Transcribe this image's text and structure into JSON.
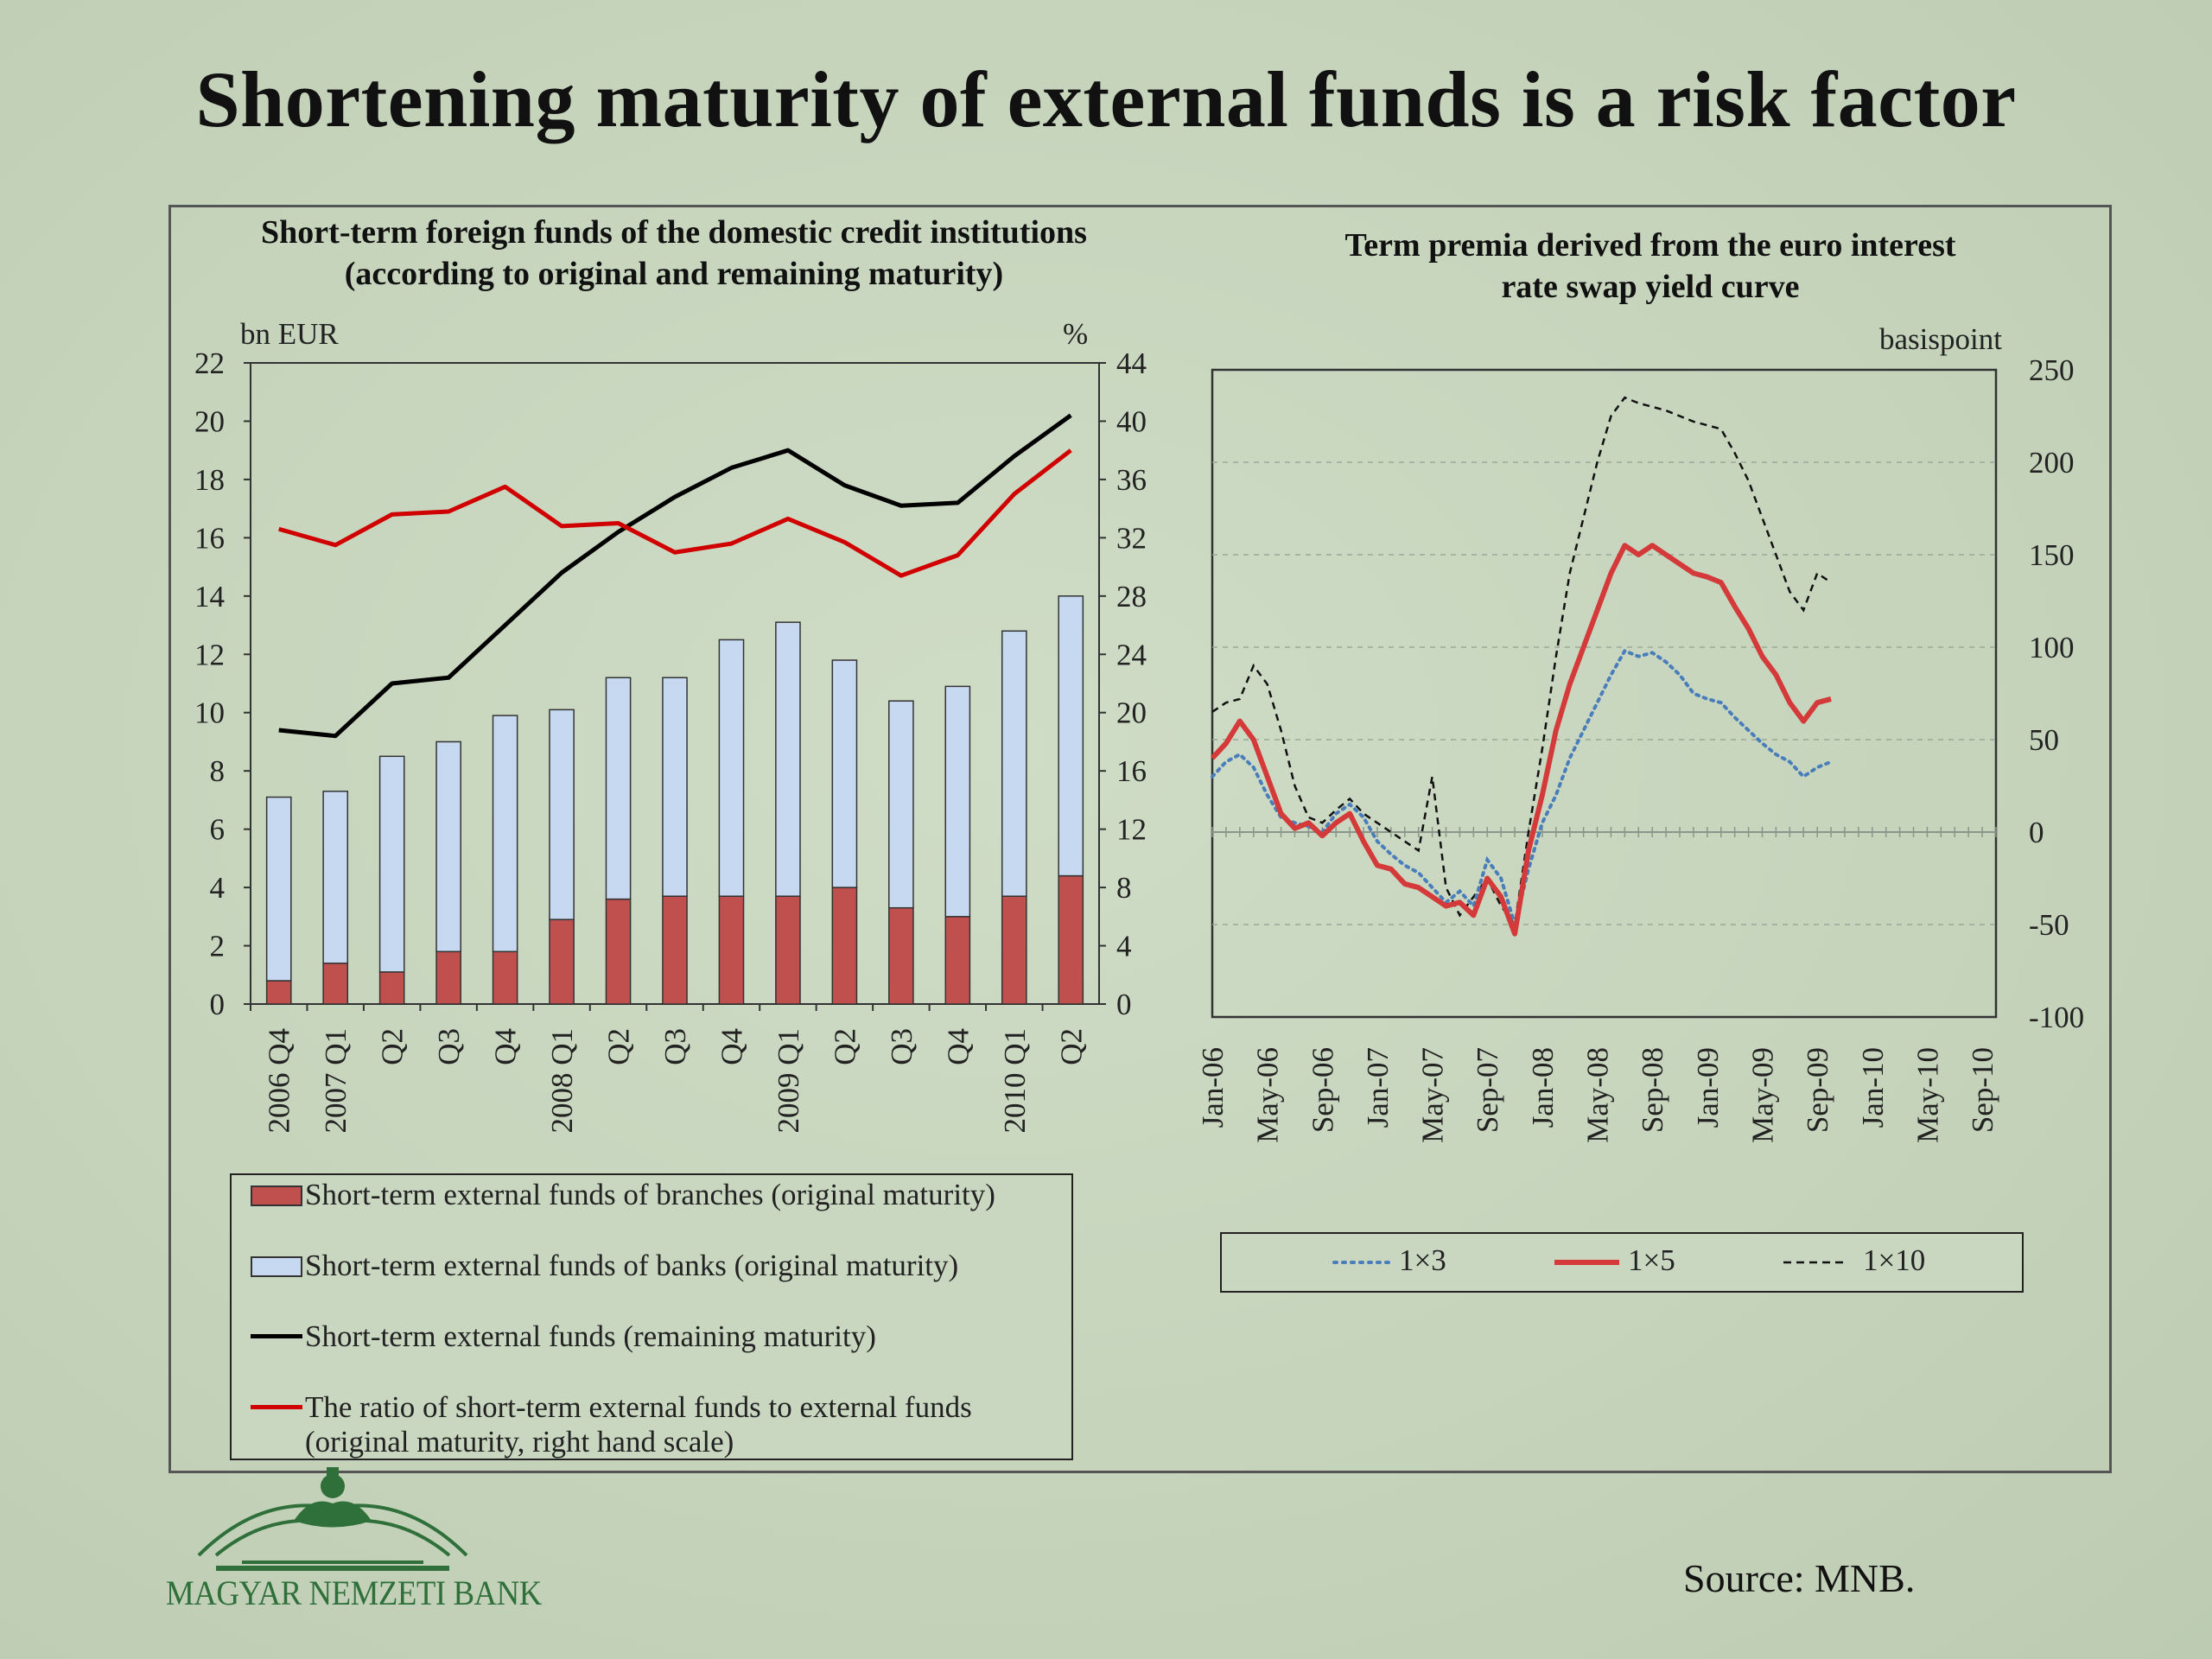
{
  "slide_title": "Shortening maturity of external funds is a risk factor",
  "source": "Source: MNB.",
  "logo_text": "MAGYAR NEMZETI BANK",
  "colors": {
    "branches": "#c0504d",
    "banks": "#c6d9f1",
    "remaining": "#000000",
    "ratio": "#d00000",
    "tp1x3": "#4a7ebb",
    "tp1x5": "#d43a3a",
    "tp1x10": "#111111"
  },
  "chart_data": [
    {
      "type": "bar",
      "title": "Short-term foreign funds of the domestic credit institutions (according to original and remaining maturity)",
      "title_line1": "Short-term foreign funds of the domestic credit institutions",
      "title_line2": "(according to original and remaining maturity)",
      "ylabel": "bn EUR",
      "ylabel_right": "%",
      "ylim": [
        0,
        22
      ],
      "ylim_right": [
        0,
        44
      ],
      "yticks": [
        "0",
        "2",
        "4",
        "6",
        "8",
        "10",
        "12",
        "14",
        "16",
        "18",
        "20",
        "22"
      ],
      "yticks_right": [
        "0",
        "4",
        "8",
        "12",
        "16",
        "20",
        "24",
        "28",
        "32",
        "36",
        "40",
        "44"
      ],
      "categories": [
        "2006 Q4",
        "2007 Q1",
        "Q2",
        "Q3",
        "Q4",
        "2008 Q1",
        "Q2",
        "Q3",
        "Q4",
        "2009 Q1",
        "Q2",
        "Q3",
        "Q4",
        "2010 Q1",
        "Q2"
      ],
      "series": [
        {
          "name": "Short-term external funds of  branches (original maturity)",
          "kind": "bar-stack",
          "values": [
            0.8,
            1.4,
            1.1,
            1.8,
            1.8,
            2.9,
            3.6,
            3.7,
            3.7,
            3.7,
            4.0,
            3.3,
            3.0,
            3.7,
            4.4
          ]
        },
        {
          "name": "Short-term external funds of  banks (original maturity)",
          "kind": "bar-stack",
          "values": [
            6.3,
            5.9,
            7.4,
            7.2,
            8.1,
            7.2,
            7.6,
            7.5,
            8.8,
            9.4,
            7.8,
            7.1,
            7.9,
            9.1,
            9.6
          ]
        },
        {
          "name": "Short-term external funds (remaining maturity)",
          "kind": "line",
          "axis": "left",
          "values": [
            9.4,
            9.2,
            11.0,
            11.2,
            13.0,
            14.8,
            16.2,
            17.4,
            18.4,
            19.0,
            17.8,
            17.1,
            17.2,
            18.8,
            20.2
          ]
        },
        {
          "name": "The ratio of short-term external funds to external funds (original maturity, right hand scale)",
          "legend_line1": "The ratio of short-term external funds to external funds",
          "legend_line2": "(original maturity, right hand scale)",
          "kind": "line",
          "axis": "right",
          "values": [
            32.6,
            31.5,
            33.6,
            33.8,
            35.5,
            32.8,
            33.0,
            31.0,
            31.6,
            33.3,
            31.7,
            29.4,
            30.8,
            35.0,
            38.0
          ]
        }
      ]
    },
    {
      "type": "line",
      "title": "Term premia derived from the euro interest rate swap yield curve",
      "title_line1": "Term premia derived from the euro interest",
      "title_line2": "rate swap yield curve",
      "ylabel": "basispoint",
      "ylim": [
        -100,
        250
      ],
      "yticks": [
        "-100",
        "-50",
        "0",
        "50",
        "100",
        "150",
        "200",
        "250"
      ],
      "xlabels": [
        "Jan-06",
        "May-06",
        "Sep-06",
        "Jan-07",
        "May-07",
        "Sep-07",
        "Jan-08",
        "May-08",
        "Sep-08",
        "Jan-09",
        "May-09",
        "Sep-09",
        "Jan-10",
        "May-10",
        "Sep-10"
      ],
      "xlim_months": [
        0,
        57
      ],
      "series": [
        {
          "name": "1×3",
          "style": "dotted",
          "points": [
            [
              0,
              30
            ],
            [
              1,
              38
            ],
            [
              2,
              42
            ],
            [
              3,
              35
            ],
            [
              4,
              20
            ],
            [
              5,
              8
            ],
            [
              6,
              5
            ],
            [
              7,
              3
            ],
            [
              8,
              0
            ],
            [
              9,
              10
            ],
            [
              10,
              15
            ],
            [
              11,
              8
            ],
            [
              12,
              -5
            ],
            [
              13,
              -12
            ],
            [
              14,
              -18
            ],
            [
              15,
              -22
            ],
            [
              16,
              -30
            ],
            [
              17,
              -38
            ],
            [
              18,
              -32
            ],
            [
              19,
              -40
            ],
            [
              20,
              -15
            ],
            [
              21,
              -25
            ],
            [
              22,
              -50
            ],
            [
              23,
              -20
            ],
            [
              24,
              5
            ],
            [
              25,
              20
            ],
            [
              26,
              40
            ],
            [
              27,
              55
            ],
            [
              28,
              70
            ],
            [
              29,
              85
            ],
            [
              30,
              98
            ],
            [
              31,
              95
            ],
            [
              32,
              97
            ],
            [
              33,
              92
            ],
            [
              34,
              85
            ],
            [
              35,
              75
            ],
            [
              36,
              72
            ],
            [
              37,
              70
            ],
            [
              38,
              62
            ],
            [
              39,
              55
            ],
            [
              40,
              48
            ],
            [
              41,
              42
            ],
            [
              42,
              38
            ],
            [
              43,
              30
            ],
            [
              44,
              35
            ],
            [
              45,
              38
            ]
          ]
        },
        {
          "name": "1×5",
          "style": "solid",
          "points": [
            [
              0,
              40
            ],
            [
              1,
              48
            ],
            [
              2,
              60
            ],
            [
              3,
              50
            ],
            [
              4,
              30
            ],
            [
              5,
              10
            ],
            [
              6,
              2
            ],
            [
              7,
              5
            ],
            [
              8,
              -2
            ],
            [
              9,
              5
            ],
            [
              10,
              10
            ],
            [
              11,
              -5
            ],
            [
              12,
              -18
            ],
            [
              13,
              -20
            ],
            [
              14,
              -28
            ],
            [
              15,
              -30
            ],
            [
              16,
              -35
            ],
            [
              17,
              -40
            ],
            [
              18,
              -38
            ],
            [
              19,
              -45
            ],
            [
              20,
              -25
            ],
            [
              21,
              -35
            ],
            [
              22,
              -55
            ],
            [
              23,
              -10
            ],
            [
              24,
              20
            ],
            [
              25,
              55
            ],
            [
              26,
              80
            ],
            [
              27,
              100
            ],
            [
              28,
              120
            ],
            [
              29,
              140
            ],
            [
              30,
              155
            ],
            [
              31,
              150
            ],
            [
              32,
              155
            ],
            [
              33,
              150
            ],
            [
              34,
              145
            ],
            [
              35,
              140
            ],
            [
              36,
              138
            ],
            [
              37,
              135
            ],
            [
              38,
              122
            ],
            [
              39,
              110
            ],
            [
              40,
              95
            ],
            [
              41,
              85
            ],
            [
              42,
              70
            ],
            [
              43,
              60
            ],
            [
              44,
              70
            ],
            [
              45,
              72
            ]
          ]
        },
        {
          "name": "1×10",
          "style": "dashed",
          "points": [
            [
              0,
              65
            ],
            [
              1,
              70
            ],
            [
              2,
              72
            ],
            [
              3,
              90
            ],
            [
              4,
              80
            ],
            [
              5,
              55
            ],
            [
              6,
              25
            ],
            [
              7,
              8
            ],
            [
              8,
              5
            ],
            [
              9,
              12
            ],
            [
              10,
              18
            ],
            [
              11,
              10
            ],
            [
              12,
              5
            ],
            [
              13,
              0
            ],
            [
              14,
              -5
            ],
            [
              15,
              -10
            ],
            [
              16,
              30
            ],
            [
              17,
              -30
            ],
            [
              18,
              -45
            ],
            [
              19,
              -35
            ],
            [
              20,
              -25
            ],
            [
              21,
              -40
            ],
            [
              22,
              -50
            ],
            [
              23,
              0
            ],
            [
              24,
              45
            ],
            [
              25,
              95
            ],
            [
              26,
              140
            ],
            [
              27,
              170
            ],
            [
              28,
              200
            ],
            [
              29,
              225
            ],
            [
              30,
              235
            ],
            [
              31,
              232
            ],
            [
              32,
              230
            ],
            [
              33,
              228
            ],
            [
              34,
              225
            ],
            [
              35,
              222
            ],
            [
              36,
              220
            ],
            [
              37,
              218
            ],
            [
              38,
              205
            ],
            [
              39,
              190
            ],
            [
              40,
              170
            ],
            [
              41,
              150
            ],
            [
              42,
              130
            ],
            [
              43,
              120
            ],
            [
              44,
              140
            ],
            [
              45,
              135
            ]
          ]
        }
      ]
    }
  ]
}
